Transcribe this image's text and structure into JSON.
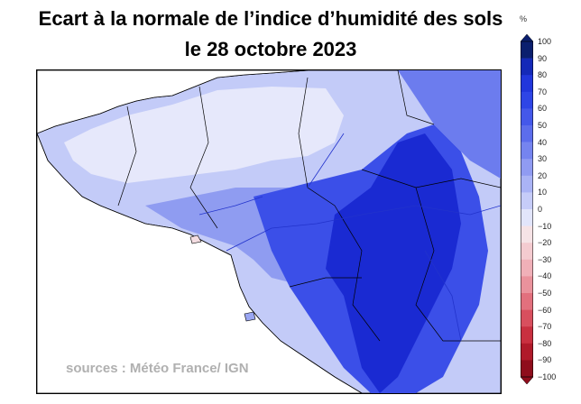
{
  "title": {
    "line1": "Ecart à la normale de l’indice d’humidité des sols",
    "line2": "le 28 octobre 2023"
  },
  "source": "sources : Météo France/ IGN",
  "legend": {
    "unit": "%",
    "ticks": [
      "100",
      "90",
      "80",
      "70",
      "60",
      "50",
      "40",
      "30",
      "20",
      "10",
      "0",
      "−10",
      "−20",
      "−30",
      "−40",
      "−50",
      "−60",
      "−70",
      "−80",
      "−90",
      "−100"
    ],
    "colors": [
      "#0b1f6e",
      "#1429b8",
      "#2136dc",
      "#2e45e6",
      "#4458ea",
      "#5c6dec",
      "#7584ef",
      "#909bf2",
      "#aab3f5",
      "#c6ccf8",
      "#e2e5fb",
      "#f6e3e6",
      "#f4cbd0",
      "#f0b0b8",
      "#ea929c",
      "#e2707d",
      "#d84f5e",
      "#c93040",
      "#b01a2a",
      "#8f0d1c"
    ]
  },
  "map": {
    "region": "Bretagne / Pays de la Loire / Normandie (ouest)",
    "palette": {
      "land_light": "#dfe3fb",
      "land_mid": "#9aa6f2",
      "land_strong": "#3f52e8",
      "land_max": "#1a2ad2",
      "sea": "#ffffff",
      "rivers": "#2233cc",
      "borders": "#000000"
    }
  }
}
